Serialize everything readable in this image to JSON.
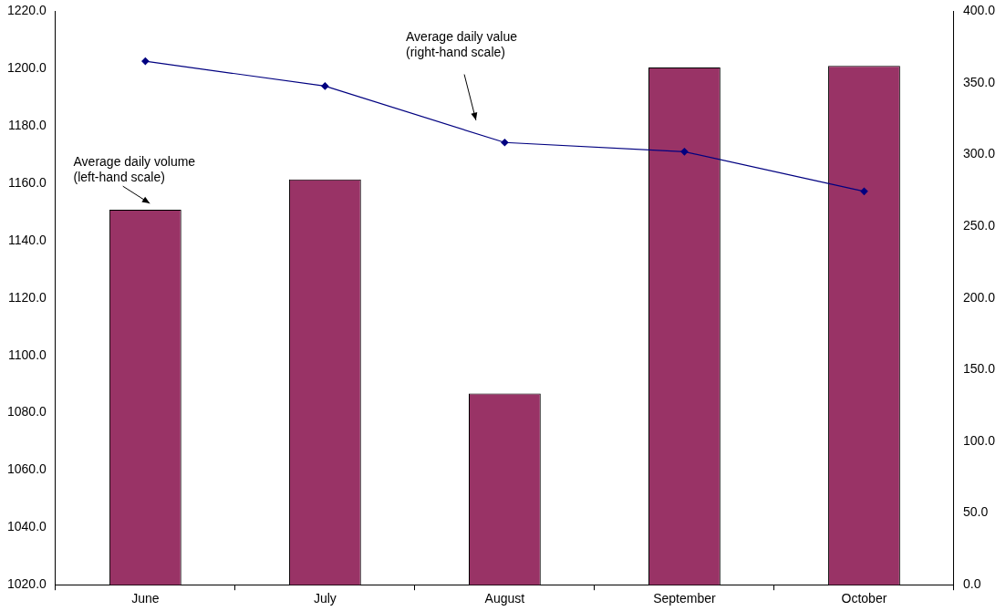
{
  "chart_data": {
    "type": "bar",
    "categories": [
      "June",
      "July",
      "August",
      "September",
      "October"
    ],
    "series": [
      {
        "color": "#993366",
        "values": [
          1150.8,
          1161.4,
          1086.7,
          1200.4,
          1201.0
        ]
      },
      {
        "type": "line",
        "axis": "y2",
        "color": "#000080",
        "marker": "diamond",
        "values": [
          365.2,
          347.8,
          308.5,
          302.1,
          274.4
        ]
      }
    ],
    "ylim": [
      1020,
      1220
    ],
    "yticks": [
      {
        "value": 1020,
        "label": "1020.0"
      },
      {
        "value": 1040,
        "label": "1040.0"
      },
      {
        "value": 1060,
        "label": "1060.0"
      },
      {
        "value": 1080,
        "label": "1080.0"
      },
      {
        "value": 1100,
        "label": "1100.0"
      },
      {
        "value": 1120,
        "label": "1120.0"
      },
      {
        "value": 1140,
        "label": "1140.0"
      },
      {
        "value": 1160,
        "label": "1160.0"
      },
      {
        "value": 1180,
        "label": "1180.0"
      },
      {
        "value": 1200,
        "label": "1200.0"
      },
      {
        "value": 1220,
        "label": "1220.0"
      }
    ],
    "y2lim": [
      0,
      400
    ],
    "y2ticks": [
      {
        "value": 0,
        "label": "0.0"
      },
      {
        "value": 50,
        "label": "50.0"
      },
      {
        "value": 100,
        "label": "100.0"
      },
      {
        "value": 150,
        "label": "150.0"
      },
      {
        "value": 200,
        "label": "200.0"
      },
      {
        "value": 250,
        "label": "250.0"
      },
      {
        "value": 300,
        "label": "300.0"
      },
      {
        "value": 350,
        "label": "350.0"
      },
      {
        "value": 400,
        "label": "400.0"
      }
    ],
    "annotations": [
      "Average daily volume (left-hand scale)",
      "Average daily value (right-hand scale)"
    ],
    "grid": false,
    "legend": false
  }
}
